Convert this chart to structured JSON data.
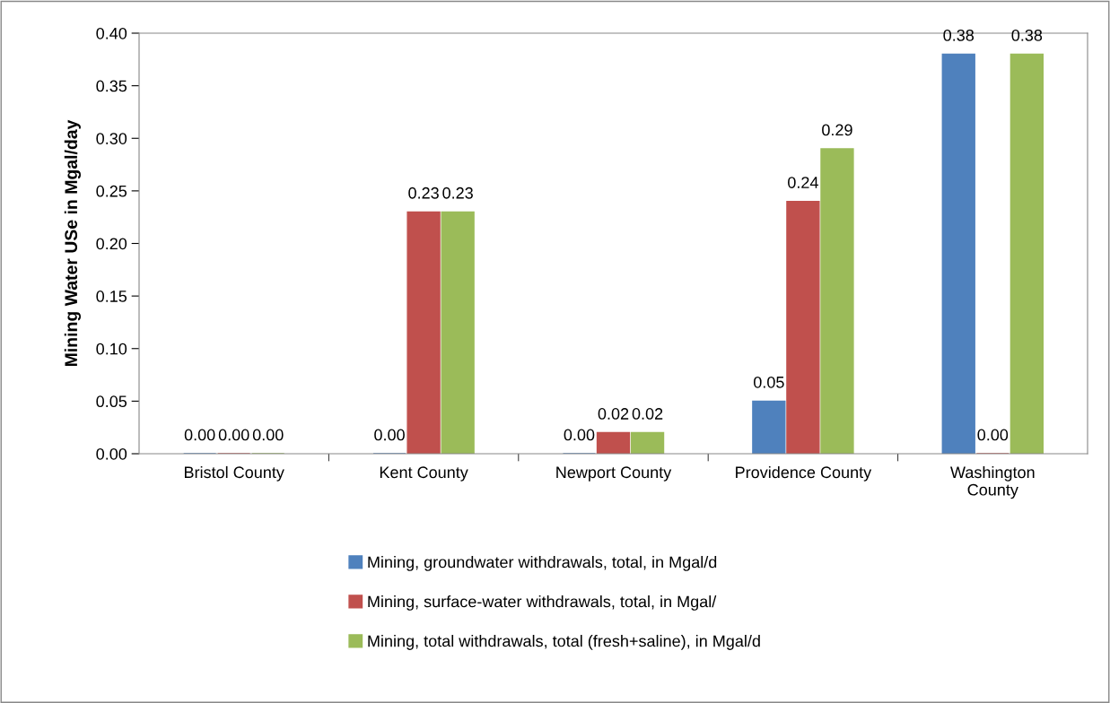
{
  "chart_data": {
    "type": "bar",
    "ylabel": "Mining Water USe in Mgal/day",
    "categories": [
      "Bristol County",
      "Kent County",
      "Newport County",
      "Providence County",
      "Washington\nCounty"
    ],
    "series": [
      {
        "name": "Mining, groundwater withdrawals, total, in Mgal/d",
        "color": "#4f81bd",
        "values": [
          0,
          0,
          0,
          0.05,
          0.38
        ],
        "value_labels": [
          "0.00",
          "0.00",
          "0.00",
          "0.05",
          "0.38"
        ]
      },
      {
        "name": "Mining, surface-water withdrawals, total, in Mgal/",
        "color": "#c0504d",
        "values": [
          0,
          0.23,
          0.02,
          0.24,
          0
        ],
        "value_labels": [
          "0.00",
          "0.23",
          "0.02",
          "0.24",
          "0.00"
        ]
      },
      {
        "name": "Mining, total withdrawals, total (fresh+saline), in Mgal/d",
        "color": "#9bbb59",
        "values": [
          0,
          0.23,
          0.02,
          0.29,
          0.38
        ],
        "value_labels": [
          "0.00",
          "0.23",
          "0.02",
          "0.29",
          "0.38"
        ]
      }
    ],
    "ylim": [
      0,
      0.4
    ],
    "yticks": [
      {
        "value": 0,
        "label": "0.00"
      },
      {
        "value": 0.05,
        "label": "0.05"
      },
      {
        "value": 0.1,
        "label": "0.10"
      },
      {
        "value": 0.15,
        "label": "0.15"
      },
      {
        "value": 0.2,
        "label": "0.20"
      },
      {
        "value": 0.25,
        "label": "0.25"
      },
      {
        "value": 0.3,
        "label": "0.30"
      },
      {
        "value": 0.35,
        "label": "0.35"
      },
      {
        "value": 0.4,
        "label": "0.40"
      }
    ],
    "grid": false,
    "legend": "bottom"
  }
}
